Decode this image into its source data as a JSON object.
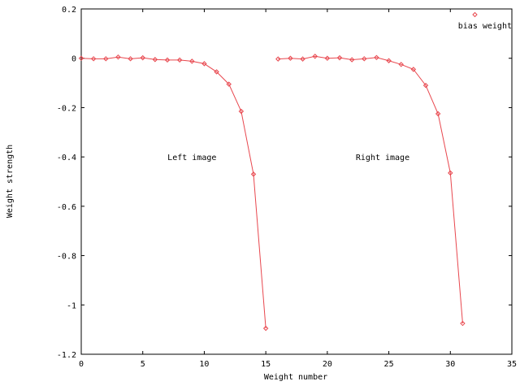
{
  "chart_data": {
    "type": "line",
    "title": "",
    "xlabel": "Weight number",
    "ylabel": "Weight strength",
    "xlim": [
      0,
      35
    ],
    "ylim": [
      -1.2,
      0.2
    ],
    "xticks": [
      0,
      5,
      10,
      15,
      20,
      25,
      30,
      35
    ],
    "yticks": [
      -1.2,
      -1,
      -0.8,
      -0.6,
      -0.4,
      -0.2,
      0,
      0.2
    ],
    "grid": false,
    "legend_position": "top-right",
    "series": [
      {
        "segments": [
          {
            "x": [
              0,
              1,
              2,
              3,
              4,
              5,
              6,
              7,
              8,
              9,
              10,
              11,
              12,
              13,
              14,
              15
            ],
            "y": [
              0.0,
              -0.002,
              -0.002,
              0.005,
              -0.002,
              0.002,
              -0.005,
              -0.007,
              -0.007,
              -0.012,
              -0.022,
              -0.055,
              -0.105,
              -0.215,
              -0.47,
              -1.095
            ]
          },
          {
            "x": [
              16,
              17,
              18,
              19,
              20,
              21,
              22,
              23,
              24,
              25,
              26,
              27,
              28,
              29,
              30,
              31
            ],
            "y": [
              -0.003,
              0.0,
              -0.003,
              0.008,
              0.0,
              0.002,
              -0.006,
              -0.002,
              0.003,
              -0.01,
              -0.025,
              -0.045,
              -0.11,
              -0.225,
              -0.465,
              -1.075
            ]
          }
        ],
        "color": "#e8474e"
      },
      {
        "name": "bias weight",
        "type": "scatter",
        "x": [],
        "y": [],
        "color": "#e8474e"
      }
    ],
    "annotations": [
      {
        "text": "Left image",
        "x": 9,
        "y": -0.4
      },
      {
        "text": "Right image",
        "x": 24.5,
        "y": -0.4
      }
    ]
  }
}
